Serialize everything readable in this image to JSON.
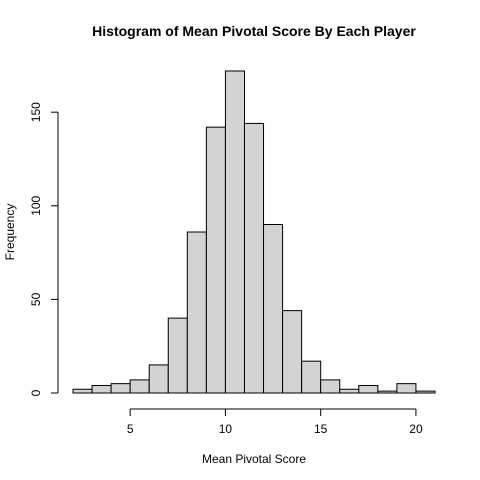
{
  "chart_data": {
    "type": "bar",
    "title": "Histogram of Mean Pivotal Score By Each Player",
    "xlabel": "Mean Pivotal Score",
    "ylabel": "Frequency",
    "bins": [
      {
        "x0": 2,
        "x1": 3,
        "count": 2
      },
      {
        "x0": 3,
        "x1": 4,
        "count": 4
      },
      {
        "x0": 4,
        "x1": 5,
        "count": 5
      },
      {
        "x0": 5,
        "x1": 6,
        "count": 7
      },
      {
        "x0": 6,
        "x1": 7,
        "count": 15
      },
      {
        "x0": 7,
        "x1": 8,
        "count": 40
      },
      {
        "x0": 8,
        "x1": 9,
        "count": 86
      },
      {
        "x0": 9,
        "x1": 10,
        "count": 142
      },
      {
        "x0": 10,
        "x1": 11,
        "count": 172
      },
      {
        "x0": 11,
        "x1": 12,
        "count": 144
      },
      {
        "x0": 12,
        "x1": 13,
        "count": 90
      },
      {
        "x0": 13,
        "x1": 14,
        "count": 44
      },
      {
        "x0": 14,
        "x1": 15,
        "count": 17
      },
      {
        "x0": 15,
        "x1": 16,
        "count": 7
      },
      {
        "x0": 16,
        "x1": 17,
        "count": 2
      },
      {
        "x0": 17,
        "x1": 18,
        "count": 4
      },
      {
        "x0": 18,
        "x1": 19,
        "count": 1
      },
      {
        "x0": 19,
        "x1": 20,
        "count": 5
      },
      {
        "x0": 20,
        "x1": 21,
        "count": 1
      }
    ],
    "x_ticks": [
      5,
      10,
      15,
      20
    ],
    "y_ticks": [
      0,
      50,
      100,
      150
    ],
    "xlim": [
      2,
      21
    ],
    "ylim": [
      0,
      172
    ],
    "bar_fill": "#d3d3d3",
    "bar_stroke": "#000000",
    "grid": false,
    "legend": "none"
  }
}
